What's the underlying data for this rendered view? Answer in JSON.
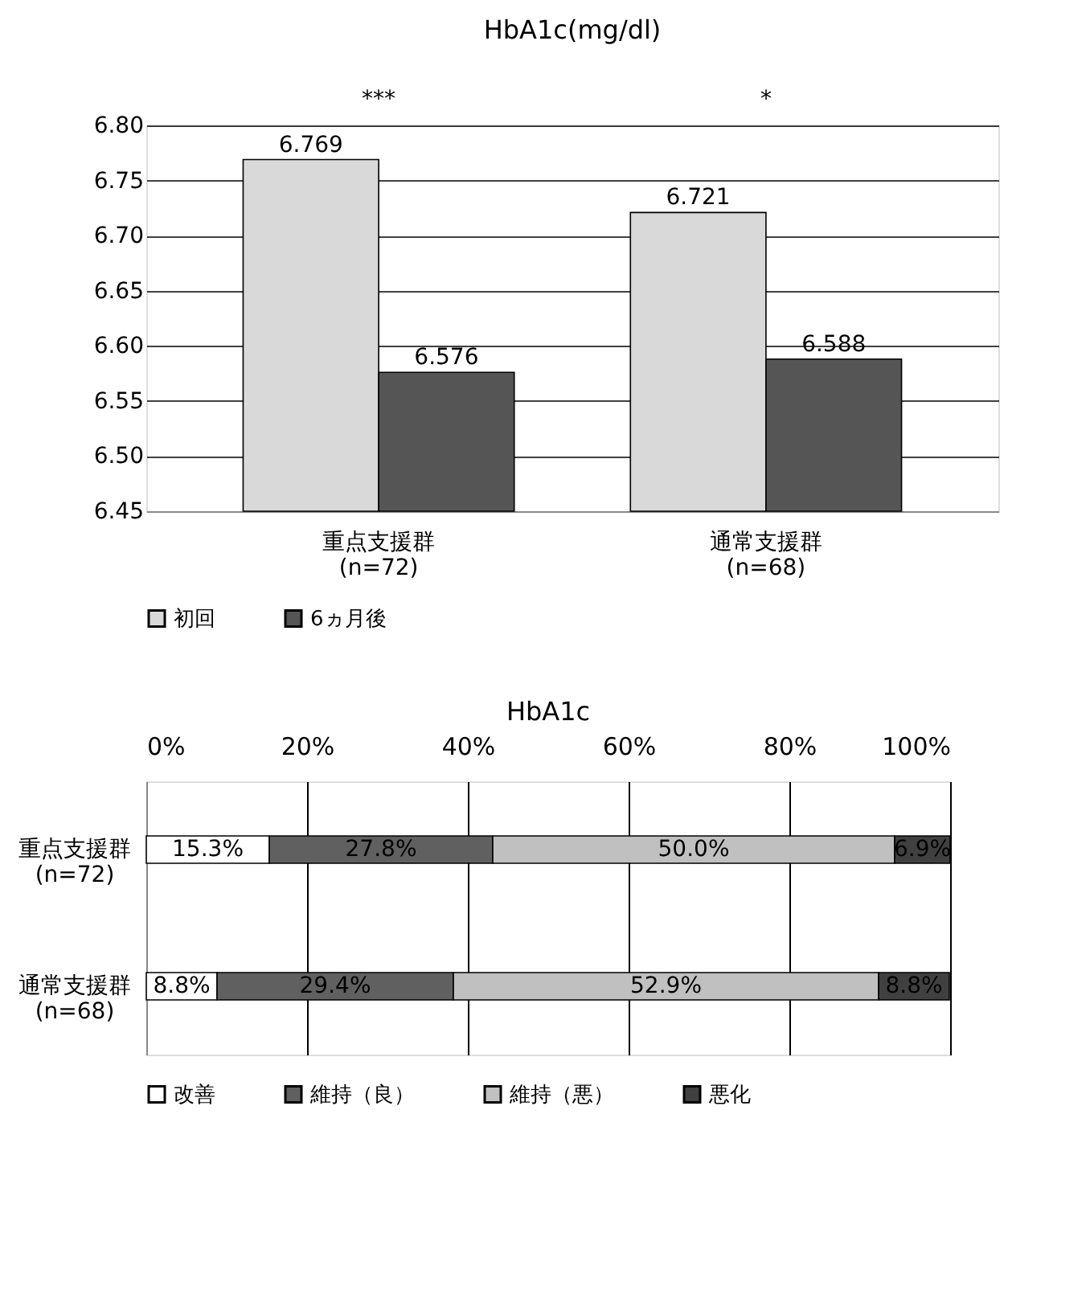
{
  "chart_data": [
    {
      "type": "bar",
      "title": "HbA1c(mg/dl)",
      "categories": [
        "重点支援群 (n=72)",
        "通常支援群 (n=68)"
      ],
      "series": [
        {
          "name": "初回",
          "color": "#d9d9d9",
          "values": [
            6.769,
            6.721
          ]
        },
        {
          "name": "6ヵ月後",
          "color": "#555555",
          "values": [
            6.576,
            6.588
          ]
        }
      ],
      "ylim": [
        6.45,
        6.8
      ],
      "yticks": [
        {
          "value": 6.45,
          "label": "6.45"
        },
        {
          "value": 6.5,
          "label": "6.50"
        },
        {
          "value": 6.55,
          "label": "6.55"
        },
        {
          "value": 6.6,
          "label": "6.60"
        },
        {
          "value": 6.65,
          "label": "6.65"
        },
        {
          "value": 6.7,
          "label": "6.70"
        },
        {
          "value": 6.75,
          "label": "6.75"
        },
        {
          "value": 6.8,
          "label": "6.80"
        }
      ],
      "grid": "y",
      "data_labels": true,
      "legend": "bottom",
      "annotations": [
        "***",
        "*"
      ]
    },
    {
      "type": "bar",
      "title": "HbA1c",
      "orientation": "horizontal",
      "stacked": true,
      "categories": [
        "重点支援群 (n=72)",
        "通常支援群 (n=68)"
      ],
      "series": [
        {
          "name": "改善",
          "color": "#ffffff",
          "values": [
            15.3,
            8.8
          ],
          "value_labels": [
            "15.3%",
            "8.8%"
          ]
        },
        {
          "name": "維持（良）",
          "color": "#606060",
          "values": [
            27.8,
            29.4
          ],
          "value_labels": [
            "27.8%",
            "29.4%"
          ]
        },
        {
          "name": "維持（悪）",
          "color": "#c0c0c0",
          "values": [
            50.0,
            52.9
          ],
          "value_labels": [
            "50.0%",
            "52.9%"
          ]
        },
        {
          "name": "悪化",
          "color": "#404040",
          "values": [
            6.9,
            8.8
          ],
          "value_labels": [
            "6.9%",
            "8.8%"
          ]
        }
      ],
      "xlim": [
        0,
        100
      ],
      "xticks": [
        {
          "value": 0,
          "label": "0%"
        },
        {
          "value": 20,
          "label": "20%"
        },
        {
          "value": 40,
          "label": "40%"
        },
        {
          "value": 60,
          "label": "60%"
        },
        {
          "value": 80,
          "label": "80%"
        },
        {
          "value": 100,
          "label": "100%"
        }
      ],
      "grid": "x",
      "legend": "bottom"
    }
  ]
}
